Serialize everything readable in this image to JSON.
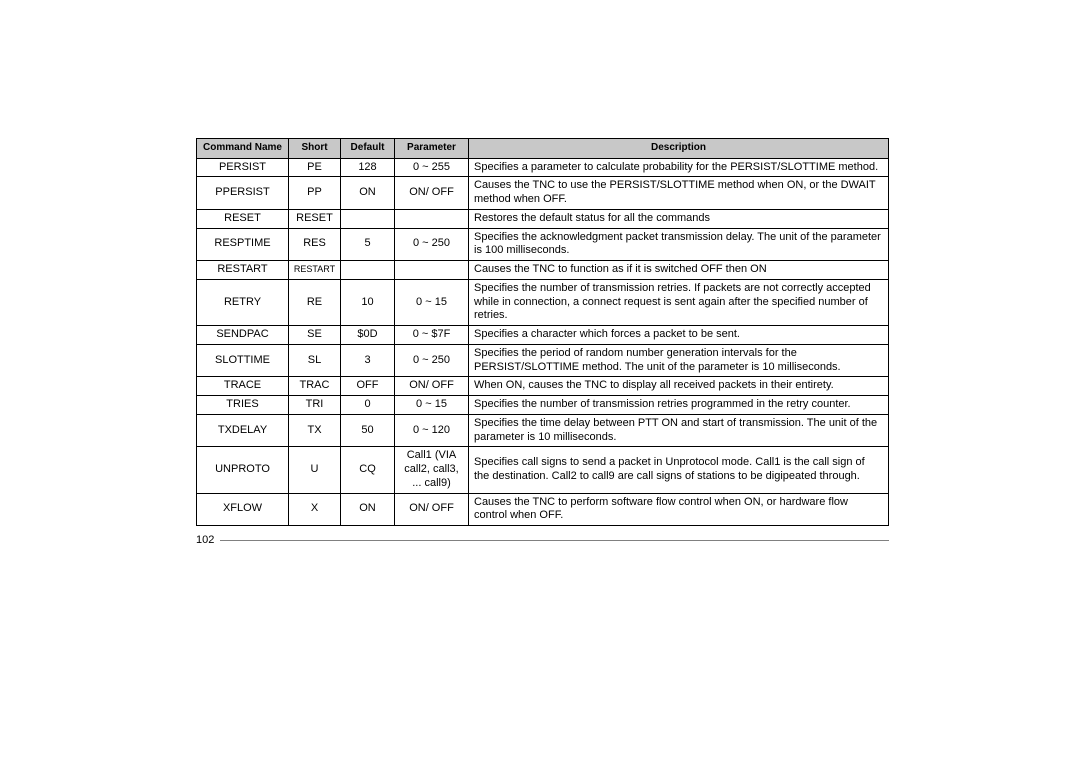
{
  "headers": {
    "command_name": "Command Name",
    "short": "Short",
    "default": "Default",
    "parameter": "Parameter",
    "description": "Description"
  },
  "rows": {
    "r0": {
      "name": "PERSIST",
      "short": "PE",
      "def": "128",
      "param": "0 ~ 255",
      "desc": "Specifies a parameter to calculate probability for the PERSIST/SLOTTIME method."
    },
    "r1": {
      "name": "PPERSIST",
      "short": "PP",
      "def": "ON",
      "param": "ON/ OFF",
      "desc": "Causes the TNC to use the PERSIST/SLOTTIME method when ON, or the DWAIT method when OFF."
    },
    "r2": {
      "name": "RESET",
      "short": "RESET",
      "def": "",
      "param": "",
      "desc": "Restores the default status for all the commands"
    },
    "r3": {
      "name": "RESPTIME",
      "short": "RES",
      "def": "5",
      "param": "0 ~ 250",
      "desc": "Specifies the acknowledgment packet transmission delay.  The unit of the parameter is 100 milliseconds."
    },
    "r4": {
      "name": "RESTART",
      "short": "RESTART",
      "def": "",
      "param": "",
      "desc": "Causes the TNC to function as if it is switched OFF then ON"
    },
    "r5": {
      "name": "RETRY",
      "short": "RE",
      "def": "10",
      "param": "0 ~ 15",
      "desc": "Specifies the number of transmission retries.  If packets are not correctly accepted while in connection, a connect request is sent again after the specified number of retries."
    },
    "r6": {
      "name": "SENDPAC",
      "short": "SE",
      "def": "$0D",
      "param": "0 ~ $7F",
      "desc": "Specifies a character which forces a packet to be sent."
    },
    "r7": {
      "name": "SLOTTIME",
      "short": "SL",
      "def": "3",
      "param": "0 ~ 250",
      "desc": "Specifies the period of random number generation intervals for the PERSIST/SLOTTIME method.  The unit of the parameter is 10 milliseconds."
    },
    "r8": {
      "name": "TRACE",
      "short": "TRAC",
      "def": "OFF",
      "param": "ON/ OFF",
      "desc": "When ON, causes the TNC to display all received packets in their entirety."
    },
    "r9": {
      "name": "TRIES",
      "short": "TRI",
      "def": "0",
      "param": "0 ~ 15",
      "desc": "Specifies the number of transmission retries programmed in the retry counter."
    },
    "r10": {
      "name": "TXDELAY",
      "short": "TX",
      "def": "50",
      "param": "0 ~ 120",
      "desc": "Specifies the time delay between PTT ON and start of transmission.  The unit of the parameter is 10 milliseconds."
    },
    "r11": {
      "name": "UNPROTO",
      "short": "U",
      "def": "CQ",
      "param": "Call1 (VIA call2, call3, ... call9)",
      "desc": "Specifies call signs to send a packet in Unprotocol mode.  Call1 is the call sign of the destination.  Call2 to call9 are call signs of stations to be digipeated through."
    },
    "r12": {
      "name": "XFLOW",
      "short": "X",
      "def": "ON",
      "param": "ON/ OFF",
      "desc": "Causes the TNC to perform software flow control when ON, or hardware flow control when OFF."
    }
  },
  "page_number": "102"
}
